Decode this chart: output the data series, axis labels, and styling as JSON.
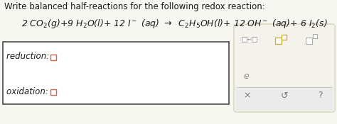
{
  "title": "Write balanced half-reactions for the following redox reaction:",
  "reduction_label": "reduction: ",
  "oxidation_label": "oxidation: ",
  "bg_color": "#f7f7f2",
  "box_bg": "#ffffff",
  "sidebar_bg": "#f5f3ec",
  "sidebar_bottom_bg": "#ebebeb",
  "title_fontsize": 8.5,
  "equation_fontsize": 9.0,
  "label_fontsize": 8.5,
  "text_color": "#1a1a1a",
  "box_border_color": "#555555",
  "sidebar_border_color": "#ccccaa",
  "small_sq_color": "#cc6644",
  "icon_gold": "#c8a830",
  "icon_gray": "#888888",
  "bottom_text_color": "#777777"
}
